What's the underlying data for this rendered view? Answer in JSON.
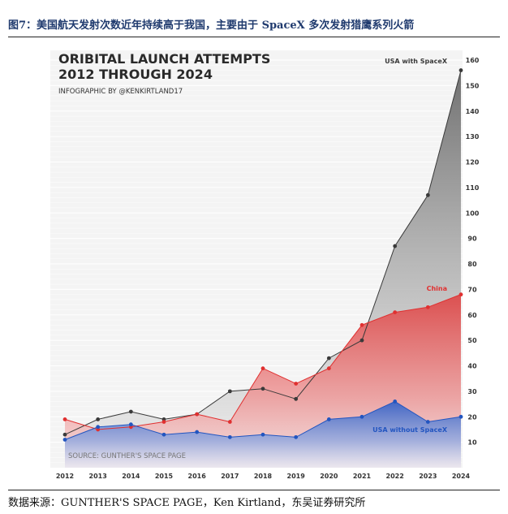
{
  "figure_caption": "图7：美国航天发射次数近年持续高于我国，主要由于 SpaceX 多次发射猎鹰系列火箭",
  "source_note": "数据来源：GUNTHER'S SPACE PAGE，Ken Kirtland，东吴证券研究所",
  "colors": {
    "usa_with_spacex": "#3a3a3a",
    "china": "#e03030",
    "usa_without_spacex": "#2255c0",
    "caption_text": "#1f3a6e"
  },
  "chart_data": {
    "type": "area",
    "title": [
      "ORIBITAL LAUNCH ATTEMPTS",
      "2012 THROUGH 2024"
    ],
    "subtitle": "INFOGRAPHIC BY @KENKIRTLAND17",
    "source_inside": "SOURCE: GUNTHER'S SPACE PAGE",
    "x": [
      2012,
      2013,
      2014,
      2015,
      2016,
      2017,
      2018,
      2019,
      2020,
      2021,
      2022,
      2023,
      2024
    ],
    "ylim": [
      0,
      160
    ],
    "yticks": [
      10,
      20,
      30,
      40,
      50,
      60,
      70,
      80,
      90,
      100,
      110,
      120,
      130,
      140,
      150,
      160
    ],
    "grid": true,
    "legend": "direct labels",
    "series": [
      {
        "name": "USA with SpaceX",
        "values": [
          13,
          19,
          22,
          19,
          21,
          30,
          31,
          27,
          43,
          50,
          87,
          107,
          156
        ]
      },
      {
        "name": "China",
        "values": [
          19,
          15,
          16,
          18,
          21,
          18,
          39,
          33,
          39,
          56,
          61,
          63,
          68
        ]
      },
      {
        "name": "USA without SpaceX",
        "values": [
          11,
          16,
          17,
          13,
          14,
          12,
          13,
          12,
          19,
          20,
          26,
          18,
          20
        ]
      }
    ]
  }
}
